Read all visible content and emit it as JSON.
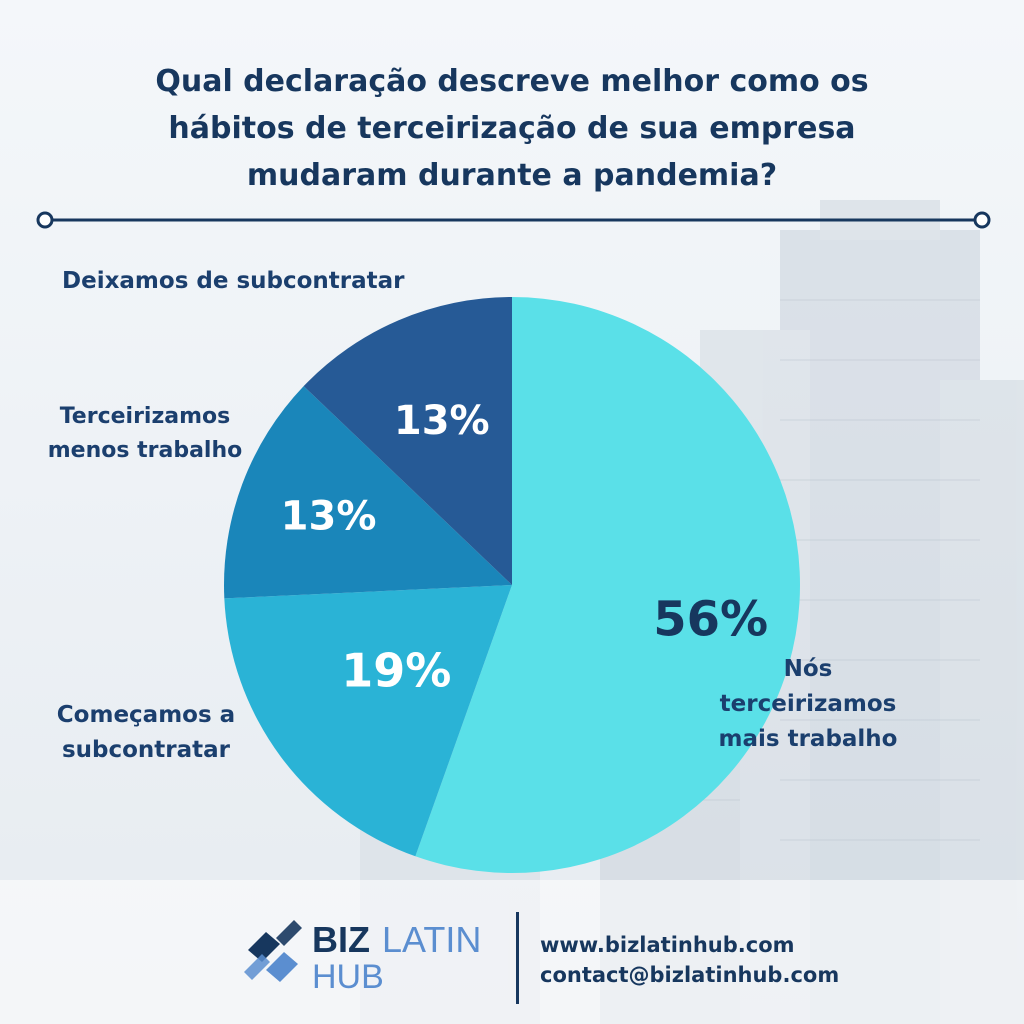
{
  "title_lines": [
    "Qual declaração descreve melhor como os",
    "hábitos de terceirização de sua empresa",
    "mudaram durante a pandemia?"
  ],
  "labels": {
    "deixamos": "Deixamos de subcontratar",
    "menos": [
      "Terceirizamos",
      "menos trabalho"
    ],
    "comecamos": [
      "Começamos a",
      "subcontratar"
    ],
    "nos": [
      "Nós",
      "terceirizamos",
      "mais trabalho"
    ]
  },
  "chart_data": {
    "type": "pie",
    "slices": [
      {
        "label": "Nós terceirizamos mais trabalho",
        "value": 56,
        "text": "56%",
        "color": "#5ae0e8",
        "text_color": "#17375e"
      },
      {
        "label": "Começamos a subcontratar",
        "value": 19,
        "text": "19%",
        "color": "#2ab3d6",
        "text_color": "#ffffff"
      },
      {
        "label": "Terceirizamos menos trabalho",
        "value": 13,
        "text": "13%",
        "color": "#1a86ba",
        "text_color": "#ffffff"
      },
      {
        "label": "Deixamos de subcontratar",
        "value": 13,
        "text": "13%",
        "color": "#265a96",
        "text_color": "#ffffff"
      }
    ]
  },
  "brand": {
    "biz": "BIZ",
    "latin": "LATIN",
    "hub": "HUB",
    "website": "www.bizlatinhub.com",
    "email": "contact@bizlatinhub.com"
  },
  "colors": {
    "navy": "#17375e",
    "logo_light": "#5b8ed0"
  }
}
